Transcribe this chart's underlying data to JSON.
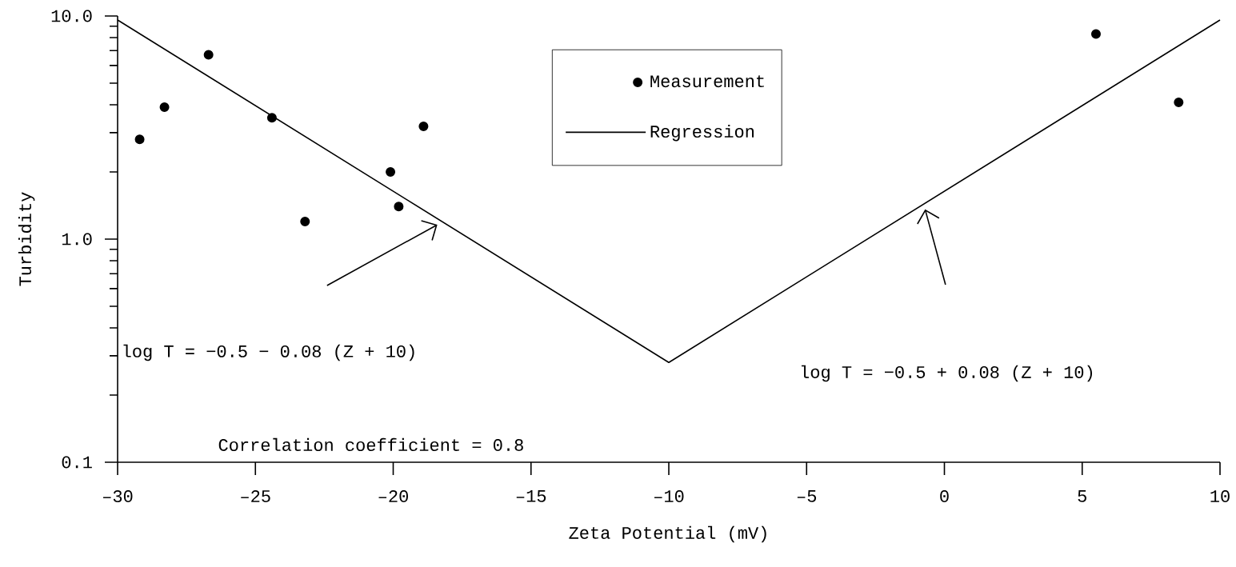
{
  "chart_data": {
    "type": "scatter",
    "xlabel": "Zeta Potential (mV)",
    "ylabel": "Turbidity",
    "log": "y",
    "xlim": [
      -30,
      10
    ],
    "ylim": [
      0.1,
      10
    ],
    "xticks": [
      {
        "value": -30,
        "label": "–30"
      },
      {
        "value": -25,
        "label": "–25"
      },
      {
        "value": -20,
        "label": "–20"
      },
      {
        "value": -15,
        "label": "–15"
      },
      {
        "value": -10,
        "label": "–10"
      },
      {
        "value": -5,
        "label": "–5"
      },
      0,
      5,
      10
    ],
    "yticks": [
      {
        "value": 0.1,
        "label": "0.1"
      },
      {
        "value": 1,
        "label": "1.0"
      },
      {
        "value": 10,
        "label": "10.0"
      }
    ],
    "legend": "top",
    "series": [
      {
        "name": "Measurement",
        "marker": "circle",
        "color": "#000000",
        "x": [
          -29.2,
          -28.3,
          -26.7,
          -24.4,
          -23.2,
          -20.1,
          -19.8,
          -18.9,
          5.5,
          8.5
        ],
        "values": [
          2.8,
          3.9,
          6.7,
          3.5,
          1.2,
          2.0,
          1.4,
          3.2,
          8.3,
          4.1
        ]
      },
      {
        "name": "Regression",
        "type": "line",
        "marker": "none",
        "line_style": "solid",
        "color": "#000000",
        "x": [
          -30,
          -10,
          10
        ],
        "values": [
          9.6,
          0.28,
          9.6
        ]
      }
    ],
    "annotations": [
      "log T = −0.5 − 0.08 (Z + 10)",
      "Correlation coefficient = 0.8",
      "log T = −0.5 + 0.08 (Z + 10)"
    ]
  }
}
